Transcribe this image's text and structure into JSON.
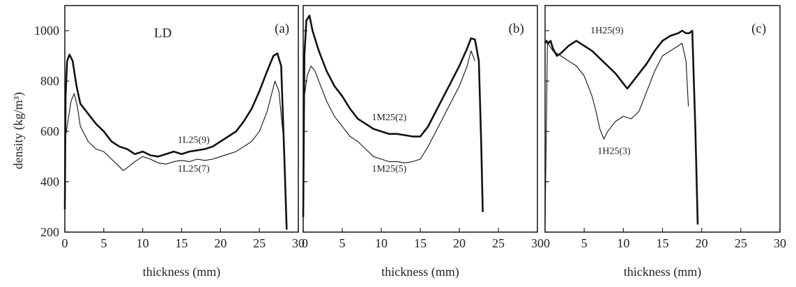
{
  "chart_data": [
    {
      "type": "line",
      "panel_label": "(a)",
      "annotation": "LD",
      "xlabel": "thickness (mm)",
      "ylabel": "density (kg/m³)",
      "xlim": [
        0,
        30
      ],
      "ylim": [
        200,
        1100
      ],
      "xticks": [
        0,
        5,
        10,
        15,
        20,
        25,
        30
      ],
      "yticks": [
        200,
        400,
        600,
        800,
        1000
      ],
      "series": [
        {
          "name": "1L25(9)",
          "weight": "bold",
          "x": [
            0,
            0.1,
            0.3,
            0.6,
            1.0,
            1.5,
            2.0,
            3.0,
            4.0,
            5.0,
            6.0,
            7.0,
            8.0,
            9.0,
            10.0,
            11.0,
            12.0,
            13.0,
            14.0,
            15.0,
            16.0,
            17.0,
            18.0,
            19.0,
            20.0,
            21.0,
            22.0,
            23.0,
            24.0,
            25.0,
            26.0,
            26.8,
            27.3,
            27.8,
            28.2,
            28.5
          ],
          "y": [
            290,
            740,
            880,
            905,
            880,
            780,
            710,
            670,
            630,
            600,
            560,
            540,
            530,
            510,
            520,
            505,
            500,
            510,
            520,
            510,
            520,
            525,
            530,
            540,
            560,
            580,
            600,
            640,
            690,
            760,
            840,
            900,
            910,
            860,
            500,
            210
          ]
        },
        {
          "name": "1L25(7)",
          "weight": "thin",
          "x": [
            0,
            0.3,
            0.8,
            1.2,
            1.6,
            2.0,
            3.0,
            4.0,
            5.0,
            6.0,
            7.0,
            7.5,
            8.0,
            9.0,
            10.0,
            11.0,
            12.0,
            13.0,
            14.0,
            15.0,
            16.0,
            17.0,
            18.0,
            19.0,
            20.0,
            21.0,
            22.0,
            23.0,
            24.0,
            25.0,
            26.0,
            27.0,
            27.5,
            28.0
          ],
          "y": [
            560,
            620,
            720,
            750,
            700,
            620,
            560,
            530,
            520,
            490,
            460,
            445,
            455,
            480,
            500,
            490,
            475,
            470,
            480,
            485,
            480,
            490,
            485,
            490,
            500,
            510,
            520,
            540,
            560,
            600,
            680,
            800,
            760,
            600
          ]
        }
      ]
    },
    {
      "type": "line",
      "panel_label": "(b)",
      "xlabel": "thickness (mm)",
      "xlim": [
        0,
        30
      ],
      "ylim": [
        200,
        1100
      ],
      "xticks": [
        0,
        5,
        10,
        15,
        20,
        25,
        30
      ],
      "series": [
        {
          "name": "1M25(2)",
          "weight": "bold",
          "x": [
            0,
            0.15,
            0.4,
            0.8,
            1.2,
            2.0,
            3.0,
            4.0,
            5.0,
            6.0,
            7.0,
            8.0,
            9.0,
            10.0,
            11.0,
            12.0,
            13.0,
            14.0,
            15.0,
            16.0,
            17.0,
            18.0,
            19.0,
            20.0,
            21.0,
            21.5,
            22.0,
            22.5,
            22.8,
            23.0
          ],
          "y": [
            260,
            900,
            1040,
            1060,
            1000,
            920,
            840,
            780,
            740,
            690,
            650,
            630,
            610,
            600,
            590,
            590,
            585,
            580,
            580,
            620,
            680,
            740,
            800,
            860,
            930,
            970,
            965,
            880,
            550,
            280
          ]
        },
        {
          "name": "1M25(5)",
          "weight": "thin",
          "x": [
            0.2,
            0.5,
            1.0,
            1.5,
            2.0,
            3.0,
            4.0,
            5.0,
            6.0,
            7.0,
            8.0,
            9.0,
            10.0,
            11.0,
            12.0,
            13.0,
            14.0,
            15.0,
            16.0,
            17.0,
            18.0,
            19.0,
            20.0,
            21.0,
            21.5,
            22.0
          ],
          "y": [
            750,
            820,
            860,
            840,
            800,
            720,
            660,
            620,
            580,
            560,
            530,
            500,
            490,
            480,
            480,
            475,
            480,
            490,
            540,
            600,
            660,
            720,
            780,
            860,
            920,
            880
          ]
        }
      ]
    },
    {
      "type": "line",
      "panel_label": "(c)",
      "xlabel": "thickness (mm)",
      "xlim": [
        0,
        30
      ],
      "ylim": [
        200,
        1100
      ],
      "xticks": [
        0,
        5,
        10,
        15,
        20,
        25,
        30
      ],
      "series": [
        {
          "name": "1H25(9)",
          "weight": "bold",
          "x": [
            0,
            0.2,
            0.4,
            0.7,
            1.0,
            1.5,
            2.0,
            3.0,
            4.0,
            5.0,
            6.0,
            7.0,
            8.0,
            9.0,
            10.0,
            10.5,
            11.0,
            12.0,
            13.0,
            14.0,
            15.0,
            16.0,
            17.0,
            17.5,
            18.0,
            18.4,
            18.8,
            19.2,
            19.5
          ],
          "y": [
            950,
            960,
            950,
            960,
            930,
            900,
            910,
            940,
            960,
            940,
            920,
            890,
            860,
            830,
            790,
            770,
            790,
            830,
            870,
            920,
            960,
            980,
            990,
            1000,
            990,
            990,
            1000,
            600,
            230
          ]
        },
        {
          "name": "1H25(3)",
          "weight": "thin",
          "x": [
            0,
            0.3,
            0.6,
            1.0,
            2.0,
            3.0,
            4.0,
            5.0,
            6.0,
            6.5,
            7.0,
            7.5,
            8.0,
            9.0,
            10.0,
            11.0,
            12.0,
            13.0,
            14.0,
            15.0,
            16.0,
            17.0,
            17.5,
            18.0,
            18.3
          ],
          "y": [
            230,
            950,
            940,
            920,
            900,
            880,
            860,
            820,
            740,
            680,
            610,
            570,
            600,
            640,
            660,
            650,
            680,
            760,
            840,
            900,
            920,
            940,
            950,
            880,
            700
          ]
        }
      ]
    }
  ]
}
